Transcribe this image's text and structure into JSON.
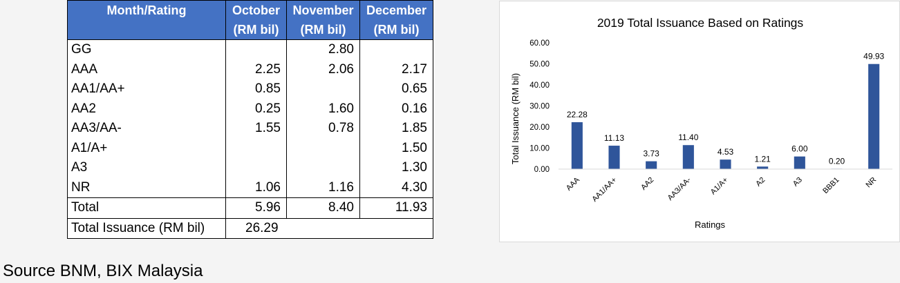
{
  "table": {
    "headers": [
      [
        "Month/Rating"
      ],
      [
        "October",
        "(RM bil)"
      ],
      [
        "November",
        "(RM bil)"
      ],
      [
        "December",
        "(RM bil)"
      ]
    ],
    "rows": [
      {
        "label": "GG",
        "oct": "",
        "nov": "2.80",
        "dec": ""
      },
      {
        "label": "AAA",
        "oct": "2.25",
        "nov": "2.06",
        "dec": "2.17"
      },
      {
        "label": "AA1/AA+",
        "oct": "0.85",
        "nov": "",
        "dec": "0.65"
      },
      {
        "label": "AA2",
        "oct": "0.25",
        "nov": "1.60",
        "dec": "0.16"
      },
      {
        "label": "AA3/AA-",
        "oct": "1.55",
        "nov": "0.78",
        "dec": "1.85"
      },
      {
        "label": "A1/A+",
        "oct": "",
        "nov": "",
        "dec": "1.50"
      },
      {
        "label": "A3",
        "oct": "",
        "nov": "",
        "dec": "1.30"
      },
      {
        "label": "NR",
        "oct": "1.06",
        "nov": "1.16",
        "dec": "4.30"
      }
    ],
    "total": {
      "label": "Total",
      "oct": "5.96",
      "nov": "8.40",
      "dec": "11.93"
    },
    "grand_total": {
      "label": "Total Issuance (RM bil)",
      "value": "26.29"
    }
  },
  "chart_data": {
    "type": "bar",
    "title": "2019 Total Issuance  Based on Ratings",
    "xlabel": "Ratings",
    "ylabel": "Total Issuance (RM bil)",
    "categories": [
      "AAA",
      "AA1/AA+",
      "AA2",
      "AA3/AA-",
      "A1/A+",
      "A2",
      "A3",
      "BBB1",
      "NR"
    ],
    "values": [
      22.28,
      11.13,
      3.73,
      11.4,
      4.53,
      1.21,
      6.0,
      0.2,
      49.93
    ],
    "value_labels": [
      "22.28",
      "11.13",
      "3.73",
      "11.40",
      "4.53",
      "1.21",
      "6.00",
      "0.20",
      "49.93"
    ],
    "y_ticks": [
      "0.00",
      "10.00",
      "20.00",
      "30.00",
      "40.00",
      "50.00",
      "60.00"
    ],
    "ylim": [
      0,
      60
    ],
    "grid": false,
    "legend": "none",
    "bar_color": "#2f559a"
  },
  "source": "Source BNM, BIX Malaysia"
}
